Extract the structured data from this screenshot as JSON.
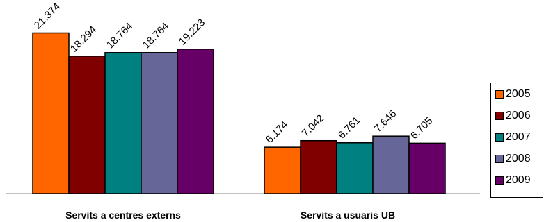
{
  "chart_data": {
    "type": "bar",
    "categories": [
      "Servits a centres externs",
      "Servits a usuaris UB"
    ],
    "series": [
      {
        "name": "2005",
        "values": [
          21374,
          6174
        ],
        "labels": [
          "21.374",
          "6.174"
        ],
        "color": "#FF6600"
      },
      {
        "name": "2006",
        "values": [
          18294,
          7042
        ],
        "labels": [
          "18.294",
          "7.042"
        ],
        "color": "#800000"
      },
      {
        "name": "2007",
        "values": [
          18764,
          6761
        ],
        "labels": [
          "18.764",
          "6.761"
        ],
        "color": "#008080"
      },
      {
        "name": "2008",
        "values": [
          18764,
          7646
        ],
        "labels": [
          "18.764",
          "7.646"
        ],
        "color": "#666699"
      },
      {
        "name": "2009",
        "values": [
          19223,
          6705
        ],
        "labels": [
          "19.223",
          "6.705"
        ],
        "color": "#660066"
      }
    ],
    "ylim": [
      0,
      25760
    ],
    "grid": false,
    "legend_position": "right"
  }
}
